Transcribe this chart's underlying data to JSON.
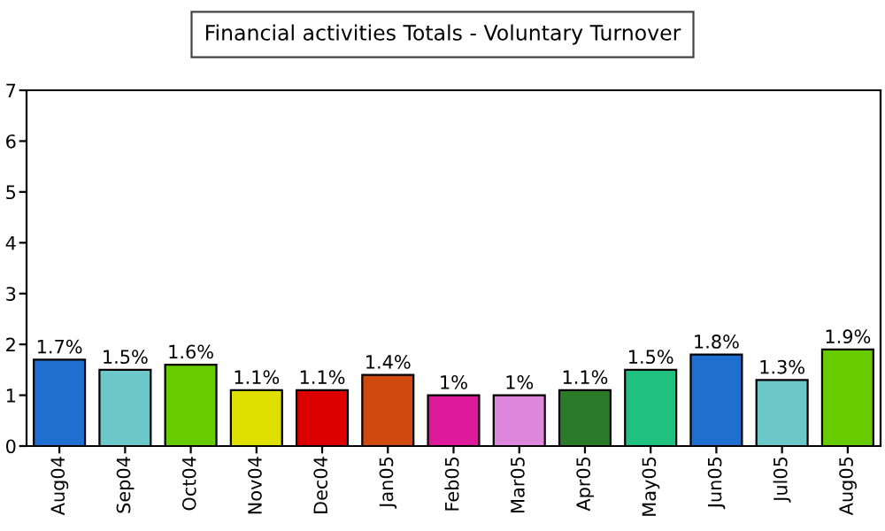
{
  "chart_data": {
    "type": "bar",
    "title": "Financial activities Totals - Voluntary Turnover",
    "categories": [
      "Aug04",
      "Sep04",
      "Oct04",
      "Nov04",
      "Dec04",
      "Jan05",
      "Feb05",
      "Mar05",
      "Apr05",
      "May05",
      "Jun05",
      "Jul05",
      "Aug05"
    ],
    "values": [
      1.7,
      1.5,
      1.6,
      1.1,
      1.1,
      1.4,
      1.0,
      1.0,
      1.1,
      1.5,
      1.8,
      1.3,
      1.9
    ],
    "value_labels": [
      "1.7%",
      "1.5%",
      "1.6%",
      "1.1%",
      "1.1%",
      "1.4%",
      "1%",
      "1%",
      "1.1%",
      "1.5%",
      "1.8%",
      "1.3%",
      "1.9%"
    ],
    "colors": [
      "#1f6fd0",
      "#6cc8c8",
      "#66cc00",
      "#e0e000",
      "#dd0000",
      "#d04a10",
      "#dd1a99",
      "#dd88dd",
      "#2a7a2a",
      "#20c080",
      "#1f6fd0",
      "#6cc8c8",
      "#66cc00"
    ],
    "ylim": [
      0,
      7
    ],
    "yticks": [
      0,
      1,
      2,
      3,
      4,
      5,
      6,
      7
    ],
    "grid": false,
    "legend": false
  }
}
